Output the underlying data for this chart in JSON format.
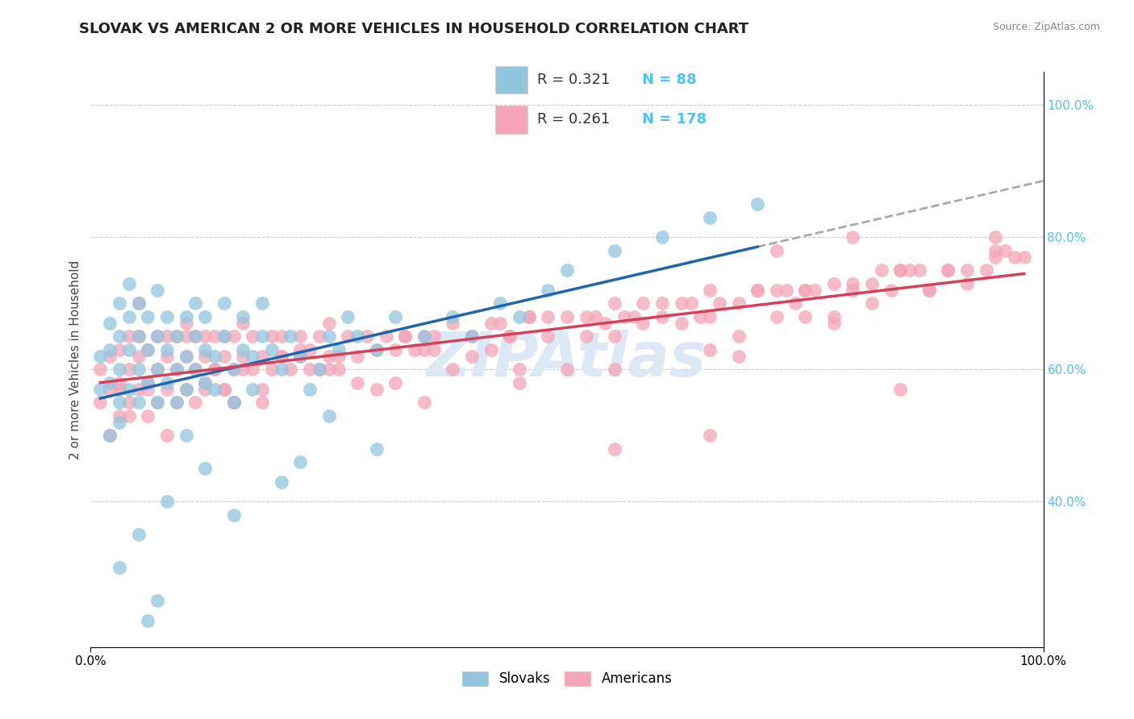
{
  "title": "SLOVAK VS AMERICAN 2 OR MORE VEHICLES IN HOUSEHOLD CORRELATION CHART",
  "source": "Source: ZipAtlas.com",
  "ylabel": "2 or more Vehicles in Household",
  "xlim": [
    0.0,
    1.0
  ],
  "ylim": [
    0.18,
    1.05
  ],
  "yticks": [
    0.4,
    0.6,
    0.8,
    1.0
  ],
  "ytick_labels": [
    "40.0%",
    "60.0%",
    "80.0%",
    "100.0%"
  ],
  "xtick_positions": [
    0.0,
    1.0
  ],
  "xtick_labels": [
    "0.0%",
    "100.0%"
  ],
  "legend_blue_R": "0.321",
  "legend_blue_N": "88",
  "legend_pink_R": "0.261",
  "legend_pink_N": "178",
  "legend_label_blue": "Slovaks",
  "legend_label_pink": "Americans",
  "blue_color": "#92c5de",
  "pink_color": "#f4a5b8",
  "blue_line_color": "#2166ac",
  "pink_line_color": "#d6405a",
  "dashed_line_color": "#aaaaaa",
  "watermark_text": "ZIPAtlas",
  "watermark_color": "#dce8f5",
  "title_fontsize": 13,
  "axis_label_fontsize": 11,
  "tick_fontsize": 11,
  "right_tick_color": "#4fc3f7",
  "blue_scatter_x": [
    0.01,
    0.01,
    0.02,
    0.02,
    0.02,
    0.02,
    0.03,
    0.03,
    0.03,
    0.03,
    0.03,
    0.04,
    0.04,
    0.04,
    0.04,
    0.05,
    0.05,
    0.05,
    0.05,
    0.06,
    0.06,
    0.06,
    0.07,
    0.07,
    0.07,
    0.07,
    0.08,
    0.08,
    0.08,
    0.09,
    0.09,
    0.09,
    0.1,
    0.1,
    0.1,
    0.11,
    0.11,
    0.11,
    0.12,
    0.12,
    0.12,
    0.13,
    0.13,
    0.14,
    0.14,
    0.15,
    0.15,
    0.16,
    0.16,
    0.17,
    0.17,
    0.18,
    0.18,
    0.19,
    0.2,
    0.21,
    0.22,
    0.23,
    0.24,
    0.25,
    0.26,
    0.27,
    0.28,
    0.3,
    0.32,
    0.35,
    0.38,
    0.4,
    0.43,
    0.45,
    0.48,
    0.5,
    0.55,
    0.6,
    0.65,
    0.7,
    0.3,
    0.2,
    0.15,
    0.25,
    0.12,
    0.08,
    0.05,
    0.03,
    0.07,
    0.1,
    0.22,
    0.06
  ],
  "blue_scatter_y": [
    0.57,
    0.62,
    0.58,
    0.63,
    0.67,
    0.5,
    0.6,
    0.55,
    0.65,
    0.7,
    0.52,
    0.63,
    0.57,
    0.68,
    0.73,
    0.6,
    0.55,
    0.65,
    0.7,
    0.58,
    0.63,
    0.68,
    0.6,
    0.55,
    0.65,
    0.72,
    0.58,
    0.63,
    0.68,
    0.55,
    0.6,
    0.65,
    0.62,
    0.57,
    0.68,
    0.6,
    0.65,
    0.7,
    0.58,
    0.63,
    0.68,
    0.62,
    0.57,
    0.65,
    0.7,
    0.6,
    0.55,
    0.63,
    0.68,
    0.62,
    0.57,
    0.65,
    0.7,
    0.63,
    0.6,
    0.65,
    0.62,
    0.57,
    0.6,
    0.65,
    0.63,
    0.68,
    0.65,
    0.63,
    0.68,
    0.65,
    0.68,
    0.65,
    0.7,
    0.68,
    0.72,
    0.75,
    0.78,
    0.8,
    0.83,
    0.85,
    0.48,
    0.43,
    0.38,
    0.53,
    0.45,
    0.4,
    0.35,
    0.3,
    0.25,
    0.5,
    0.46,
    0.22
  ],
  "pink_scatter_x": [
    0.01,
    0.01,
    0.02,
    0.02,
    0.02,
    0.03,
    0.03,
    0.03,
    0.04,
    0.04,
    0.04,
    0.05,
    0.05,
    0.05,
    0.05,
    0.06,
    0.06,
    0.06,
    0.07,
    0.07,
    0.07,
    0.08,
    0.08,
    0.08,
    0.09,
    0.09,
    0.09,
    0.1,
    0.1,
    0.1,
    0.11,
    0.11,
    0.11,
    0.12,
    0.12,
    0.12,
    0.13,
    0.13,
    0.14,
    0.14,
    0.14,
    0.15,
    0.15,
    0.15,
    0.16,
    0.16,
    0.17,
    0.17,
    0.18,
    0.18,
    0.19,
    0.19,
    0.2,
    0.2,
    0.21,
    0.22,
    0.22,
    0.23,
    0.24,
    0.25,
    0.26,
    0.27,
    0.28,
    0.29,
    0.3,
    0.31,
    0.32,
    0.33,
    0.35,
    0.36,
    0.38,
    0.4,
    0.42,
    0.44,
    0.46,
    0.48,
    0.5,
    0.52,
    0.55,
    0.57,
    0.6,
    0.62,
    0.65,
    0.68,
    0.7,
    0.72,
    0.75,
    0.78,
    0.8,
    0.82,
    0.85,
    0.87,
    0.9,
    0.92,
    0.95,
    0.97,
    0.55,
    0.65,
    0.72,
    0.8,
    0.25,
    0.35,
    0.45,
    0.55,
    0.65,
    0.75,
    0.85,
    0.95,
    0.1,
    0.2,
    0.3,
    0.4,
    0.5,
    0.6,
    0.7,
    0.8,
    0.9,
    0.48,
    0.58,
    0.68,
    0.78,
    0.88,
    0.12,
    0.22,
    0.32,
    0.42,
    0.52,
    0.62,
    0.72,
    0.82,
    0.92,
    0.15,
    0.25,
    0.35,
    0.45,
    0.55,
    0.65,
    0.75,
    0.85,
    0.95,
    0.08,
    0.18,
    0.28,
    0.38,
    0.58,
    0.68,
    0.78,
    0.88,
    0.98,
    0.04,
    0.14,
    0.24,
    0.34,
    0.44,
    0.54,
    0.64,
    0.74,
    0.84,
    0.94,
    0.06,
    0.16,
    0.26,
    0.36,
    0.46,
    0.56,
    0.66,
    0.76,
    0.86,
    0.96,
    0.03,
    0.13,
    0.23,
    0.33,
    0.43,
    0.53,
    0.63,
    0.73,
    0.83
  ],
  "pink_scatter_y": [
    0.55,
    0.6,
    0.57,
    0.62,
    0.5,
    0.58,
    0.63,
    0.53,
    0.6,
    0.65,
    0.55,
    0.62,
    0.57,
    0.65,
    0.7,
    0.58,
    0.63,
    0.53,
    0.6,
    0.65,
    0.55,
    0.62,
    0.57,
    0.65,
    0.6,
    0.55,
    0.65,
    0.62,
    0.57,
    0.65,
    0.6,
    0.55,
    0.65,
    0.62,
    0.57,
    0.65,
    0.6,
    0.65,
    0.62,
    0.57,
    0.65,
    0.6,
    0.65,
    0.55,
    0.62,
    0.67,
    0.6,
    0.65,
    0.62,
    0.57,
    0.65,
    0.6,
    0.62,
    0.65,
    0.6,
    0.65,
    0.62,
    0.6,
    0.65,
    0.62,
    0.6,
    0.65,
    0.62,
    0.65,
    0.63,
    0.65,
    0.63,
    0.65,
    0.65,
    0.63,
    0.67,
    0.65,
    0.67,
    0.65,
    0.68,
    0.65,
    0.68,
    0.68,
    0.7,
    0.68,
    0.7,
    0.7,
    0.72,
    0.7,
    0.72,
    0.72,
    0.72,
    0.73,
    0.73,
    0.73,
    0.75,
    0.75,
    0.75,
    0.75,
    0.77,
    0.77,
    0.6,
    0.5,
    0.78,
    0.8,
    0.67,
    0.55,
    0.58,
    0.48,
    0.63,
    0.68,
    0.57,
    0.8,
    0.67,
    0.62,
    0.57,
    0.62,
    0.6,
    0.68,
    0.72,
    0.72,
    0.75,
    0.68,
    0.7,
    0.62,
    0.68,
    0.72,
    0.58,
    0.63,
    0.58,
    0.63,
    0.65,
    0.67,
    0.68,
    0.7,
    0.73,
    0.55,
    0.6,
    0.63,
    0.6,
    0.65,
    0.68,
    0.72,
    0.75,
    0.78,
    0.5,
    0.55,
    0.58,
    0.6,
    0.67,
    0.65,
    0.67,
    0.72,
    0.77,
    0.53,
    0.57,
    0.6,
    0.63,
    0.65,
    0.67,
    0.68,
    0.7,
    0.72,
    0.75,
    0.57,
    0.6,
    0.62,
    0.65,
    0.68,
    0.68,
    0.7,
    0.72,
    0.75,
    0.78,
    0.57,
    0.6,
    0.63,
    0.65,
    0.67,
    0.68,
    0.7,
    0.72,
    0.75
  ]
}
